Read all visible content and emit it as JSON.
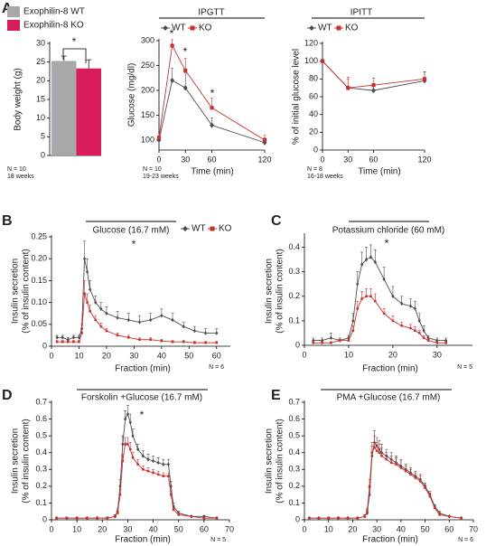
{
  "chart_data": [
    {
      "type": "bar",
      "panel": "A",
      "ylabel": "Body weight (g)",
      "ylim": [
        0,
        30
      ],
      "yticks": [
        0,
        5,
        10,
        15,
        20,
        25,
        30
      ],
      "series": [
        {
          "name": "Exophilin-8 WT",
          "color": "#a6a8ab",
          "values": [
            25.3
          ],
          "errors": [
            1.3
          ]
        },
        {
          "name": "Exophilin-8 KO",
          "color": "#d81b5a",
          "values": [
            23.3
          ],
          "errors": [
            2.3
          ]
        }
      ],
      "annotations": [
        "*"
      ],
      "notes": [
        "N = 10",
        "18 weeks"
      ]
    },
    {
      "type": "line",
      "title": "IPGTT",
      "xlabel": "Time (min)",
      "ylabel": "Glucose  (mg/dl)",
      "xlim": [
        0,
        120
      ],
      "xticks": [
        0,
        30,
        60,
        120
      ],
      "ylim": [
        80,
        300
      ],
      "yticks": [
        100,
        150,
        200,
        250,
        300
      ],
      "x": [
        0,
        15,
        30,
        60,
        120
      ],
      "series": [
        {
          "name": "WT",
          "color": "#4d4d4d",
          "values": [
            100,
            220,
            205,
            130,
            95
          ],
          "errors": [
            8,
            25,
            30,
            15,
            10
          ]
        },
        {
          "name": "KO",
          "color": "#c8322e",
          "values": [
            105,
            290,
            240,
            165,
            100
          ],
          "errors": [
            10,
            12,
            25,
            20,
            10
          ]
        }
      ],
      "annotations": [
        "*",
        "*",
        "*"
      ],
      "notes": [
        "N = 10",
        "19-23 weeks"
      ]
    },
    {
      "type": "line",
      "title": "IPITT",
      "xlabel": "Time (min)",
      "ylabel": "% of initial glucose level",
      "xlim": [
        0,
        120
      ],
      "xticks": [
        0,
        30,
        60,
        120
      ],
      "ylim": [
        0,
        120
      ],
      "yticks": [
        0,
        20,
        40,
        60,
        80,
        100,
        120
      ],
      "x": [
        0,
        30,
        60,
        120
      ],
      "series": [
        {
          "name": "WT",
          "color": "#4d4d4d",
          "values": [
            100,
            70,
            67,
            78
          ],
          "errors": [
            2,
            12,
            8,
            10
          ]
        },
        {
          "name": "KO",
          "color": "#c8322e",
          "values": [
            100,
            70,
            73,
            80
          ],
          "errors": [
            2,
            10,
            8,
            8
          ]
        }
      ],
      "annotations": [],
      "notes": [
        "N = 8",
        "16-18 weeks"
      ]
    },
    {
      "type": "line",
      "panel": "B",
      "title": "Glucose (16.7 mM)",
      "xlabel": "Fraction (min)",
      "ylabel": [
        "Insulin secretion",
        "(% of insulin content)"
      ],
      "xlim": [
        0,
        65
      ],
      "xticks": [
        0,
        10,
        20,
        30,
        40,
        50,
        60
      ],
      "ylim": [
        0,
        0.25
      ],
      "yticks": [
        0,
        0.05,
        {
          "value": 0.1,
          "label": "0.10"
        },
        0.15,
        {
          "value": 0.2,
          "label": "0.20"
        },
        0.25
      ],
      "x": [
        2,
        4,
        6,
        8,
        10,
        11,
        12,
        13,
        14,
        16,
        18,
        20,
        24,
        28,
        32,
        36,
        40,
        44,
        48,
        52,
        56,
        60
      ],
      "series": [
        {
          "name": "WT",
          "color": "#4d4d4d",
          "values": [
            0.02,
            0.02,
            0.015,
            0.02,
            0.02,
            0.04,
            0.2,
            0.17,
            0.13,
            0.1,
            0.085,
            0.075,
            0.065,
            0.06,
            0.055,
            0.06,
            0.07,
            0.06,
            0.045,
            0.035,
            0.03,
            0.03
          ],
          "errors": [
            0.005,
            0.005,
            0.005,
            0.005,
            0.005,
            0.01,
            0.04,
            0.03,
            0.02,
            0.015,
            0.015,
            0.015,
            0.015,
            0.015,
            0.015,
            0.015,
            0.015,
            0.015,
            0.01,
            0.01,
            0.01,
            0.01
          ]
        },
        {
          "name": "KO",
          "color": "#c8322e",
          "values": [
            0.01,
            0.01,
            0.01,
            0.01,
            0.01,
            0.03,
            0.12,
            0.1,
            0.08,
            0.06,
            0.045,
            0.035,
            0.025,
            0.02,
            0.015,
            0.015,
            0.012,
            0.01,
            0.01,
            0.008,
            0.008,
            0.008
          ],
          "errors": [
            0.003,
            0.003,
            0.003,
            0.003,
            0.003,
            0.01,
            0.03,
            0.02,
            0.015,
            0.01,
            0.008,
            0.006,
            0.005,
            0.005,
            0.004,
            0.004,
            0.004,
            0.003,
            0.003,
            0.003,
            0.003,
            0.003
          ]
        }
      ],
      "annotations": [
        "*"
      ],
      "notes": [
        "N = 6"
      ]
    },
    {
      "type": "line",
      "panel": "C",
      "title": "Potassium chloride (60 mM)",
      "xlabel": "Fraction (min)",
      "ylabel": [
        "Insulin secretion",
        "(% of insulin content)"
      ],
      "xlim": [
        0,
        38
      ],
      "xticks": [
        0,
        10,
        20,
        30
      ],
      "ylim": [
        0,
        0.45
      ],
      "yticks": [
        0,
        0.1,
        0.2,
        0.3,
        0.4
      ],
      "x": [
        2,
        4,
        6,
        8,
        10,
        11,
        12,
        13,
        14,
        15,
        16,
        18,
        20,
        22,
        24,
        25,
        26,
        27,
        28,
        30,
        32
      ],
      "series": [
        {
          "name": "WT",
          "color": "#4d4d4d",
          "values": [
            0.02,
            0.02,
            0.03,
            0.02,
            0.03,
            0.1,
            0.25,
            0.33,
            0.35,
            0.36,
            0.34,
            0.27,
            0.2,
            0.17,
            0.16,
            0.15,
            0.1,
            0.06,
            0.03,
            0.02,
            0.02
          ],
          "errors": [
            0.01,
            0.01,
            0.02,
            0.01,
            0.01,
            0.03,
            0.05,
            0.05,
            0.05,
            0.05,
            0.05,
            0.05,
            0.04,
            0.03,
            0.03,
            0.03,
            0.03,
            0.02,
            0.01,
            0.01,
            0.01
          ]
        },
        {
          "name": "KO",
          "color": "#c8322e",
          "values": [
            0.01,
            0.01,
            0.01,
            0.02,
            0.02,
            0.06,
            0.15,
            0.19,
            0.2,
            0.2,
            0.18,
            0.13,
            0.1,
            0.08,
            0.07,
            0.06,
            0.05,
            0.03,
            0.02,
            0.01,
            0.01
          ],
          "errors": [
            0.005,
            0.005,
            0.005,
            0.005,
            0.01,
            0.02,
            0.03,
            0.03,
            0.03,
            0.03,
            0.03,
            0.02,
            0.02,
            0.015,
            0.015,
            0.015,
            0.01,
            0.01,
            0.005,
            0.005,
            0.005
          ]
        }
      ],
      "annotations": [
        "*"
      ],
      "notes": [
        "N = 5"
      ]
    },
    {
      "type": "line",
      "panel": "D",
      "title": "Forskolin +Glucose (16.7 mM)",
      "xlabel": "Fraction (min)",
      "ylabel": [
        "Insulin secretion",
        "(% of insulin content)"
      ],
      "xlim": [
        0,
        70
      ],
      "xticks": [
        0,
        10,
        20,
        30,
        40,
        50,
        60,
        70
      ],
      "ylim": [
        0,
        0.7
      ],
      "yticks": [
        0,
        0.1,
        0.2,
        0.3,
        0.4,
        0.5,
        0.6,
        0.7
      ],
      "x": [
        2,
        6,
        10,
        14,
        18,
        22,
        25,
        26,
        27,
        28,
        29,
        30,
        31,
        32,
        34,
        36,
        38,
        40,
        42,
        44,
        46,
        47,
        48,
        50,
        55,
        60,
        65
      ],
      "series": [
        {
          "name": "WT",
          "color": "#4d4d4d",
          "values": [
            0.01,
            0.01,
            0.01,
            0.01,
            0.01,
            0.01,
            0.02,
            0.05,
            0.2,
            0.45,
            0.6,
            0.63,
            0.58,
            0.5,
            0.42,
            0.38,
            0.36,
            0.35,
            0.34,
            0.33,
            0.33,
            0.2,
            0.08,
            0.04,
            0.02,
            0.02,
            0.01
          ],
          "errors": [
            0.005,
            0.005,
            0.005,
            0.005,
            0.005,
            0.005,
            0.01,
            0.02,
            0.04,
            0.05,
            0.05,
            0.05,
            0.05,
            0.04,
            0.03,
            0.03,
            0.03,
            0.03,
            0.03,
            0.03,
            0.03,
            0.03,
            0.02,
            0.01,
            0.005,
            0.005,
            0.005
          ]
        },
        {
          "name": "KO",
          "color": "#c8322e",
          "values": [
            0.01,
            0.01,
            0.01,
            0.01,
            0.01,
            0.01,
            0.02,
            0.04,
            0.15,
            0.35,
            0.45,
            0.45,
            0.42,
            0.37,
            0.33,
            0.3,
            0.29,
            0.28,
            0.27,
            0.26,
            0.26,
            0.15,
            0.06,
            0.03,
            0.02,
            0.01,
            0.01
          ],
          "errors": [
            0.005,
            0.005,
            0.005,
            0.005,
            0.005,
            0.005,
            0.01,
            0.02,
            0.03,
            0.04,
            0.04,
            0.04,
            0.04,
            0.03,
            0.03,
            0.02,
            0.02,
            0.02,
            0.02,
            0.02,
            0.02,
            0.02,
            0.01,
            0.01,
            0.005,
            0.005,
            0.005
          ]
        }
      ],
      "annotations": [
        "*"
      ],
      "notes": [
        "N = 5"
      ]
    },
    {
      "type": "line",
      "panel": "E",
      "title": "PMA +Glucose (16.7 mM)",
      "xlabel": "Fraction (min)",
      "ylabel": [
        "Insulin secretion",
        "(% of insulin content)"
      ],
      "xlim": [
        0,
        70
      ],
      "xticks": [
        0,
        10,
        20,
        30,
        40,
        50,
        60,
        70
      ],
      "ylim": [
        0,
        0.7
      ],
      "yticks": [
        0,
        0.1,
        0.2,
        0.3,
        0.4,
        0.5,
        0.6,
        0.7
      ],
      "x": [
        2,
        6,
        10,
        14,
        18,
        22,
        25,
        26,
        27,
        28,
        29,
        30,
        31,
        32,
        34,
        36,
        38,
        40,
        42,
        44,
        46,
        48,
        50,
        52,
        54,
        56,
        60,
        65
      ],
      "series": [
        {
          "name": "WT",
          "color": "#4d4d4d",
          "values": [
            0.01,
            0.01,
            0.01,
            0.01,
            0.01,
            0.01,
            0.02,
            0.04,
            0.15,
            0.38,
            0.46,
            0.44,
            0.42,
            0.4,
            0.38,
            0.36,
            0.34,
            0.32,
            0.3,
            0.28,
            0.26,
            0.24,
            0.2,
            0.15,
            0.08,
            0.04,
            0.02,
            0.01
          ],
          "errors": [
            0.005,
            0.005,
            0.005,
            0.005,
            0.005,
            0.005,
            0.01,
            0.02,
            0.04,
            0.06,
            0.07,
            0.05,
            0.05,
            0.05,
            0.04,
            0.04,
            0.04,
            0.04,
            0.03,
            0.03,
            0.03,
            0.03,
            0.02,
            0.02,
            0.01,
            0.01,
            0.005,
            0.005
          ]
        },
        {
          "name": "KO",
          "color": "#c8322e",
          "values": [
            0.01,
            0.01,
            0.01,
            0.01,
            0.01,
            0.01,
            0.02,
            0.05,
            0.2,
            0.4,
            0.43,
            0.41,
            0.4,
            0.38,
            0.36,
            0.34,
            0.33,
            0.31,
            0.29,
            0.27,
            0.25,
            0.23,
            0.19,
            0.14,
            0.07,
            0.03,
            0.02,
            0.01
          ],
          "errors": [
            0.005,
            0.005,
            0.005,
            0.005,
            0.005,
            0.005,
            0.01,
            0.02,
            0.04,
            0.06,
            0.07,
            0.05,
            0.05,
            0.05,
            0.04,
            0.04,
            0.04,
            0.04,
            0.03,
            0.03,
            0.03,
            0.03,
            0.02,
            0.02,
            0.01,
            0.01,
            0.005,
            0.005
          ]
        }
      ],
      "annotations": [],
      "notes": [
        "N = 6"
      ]
    }
  ]
}
